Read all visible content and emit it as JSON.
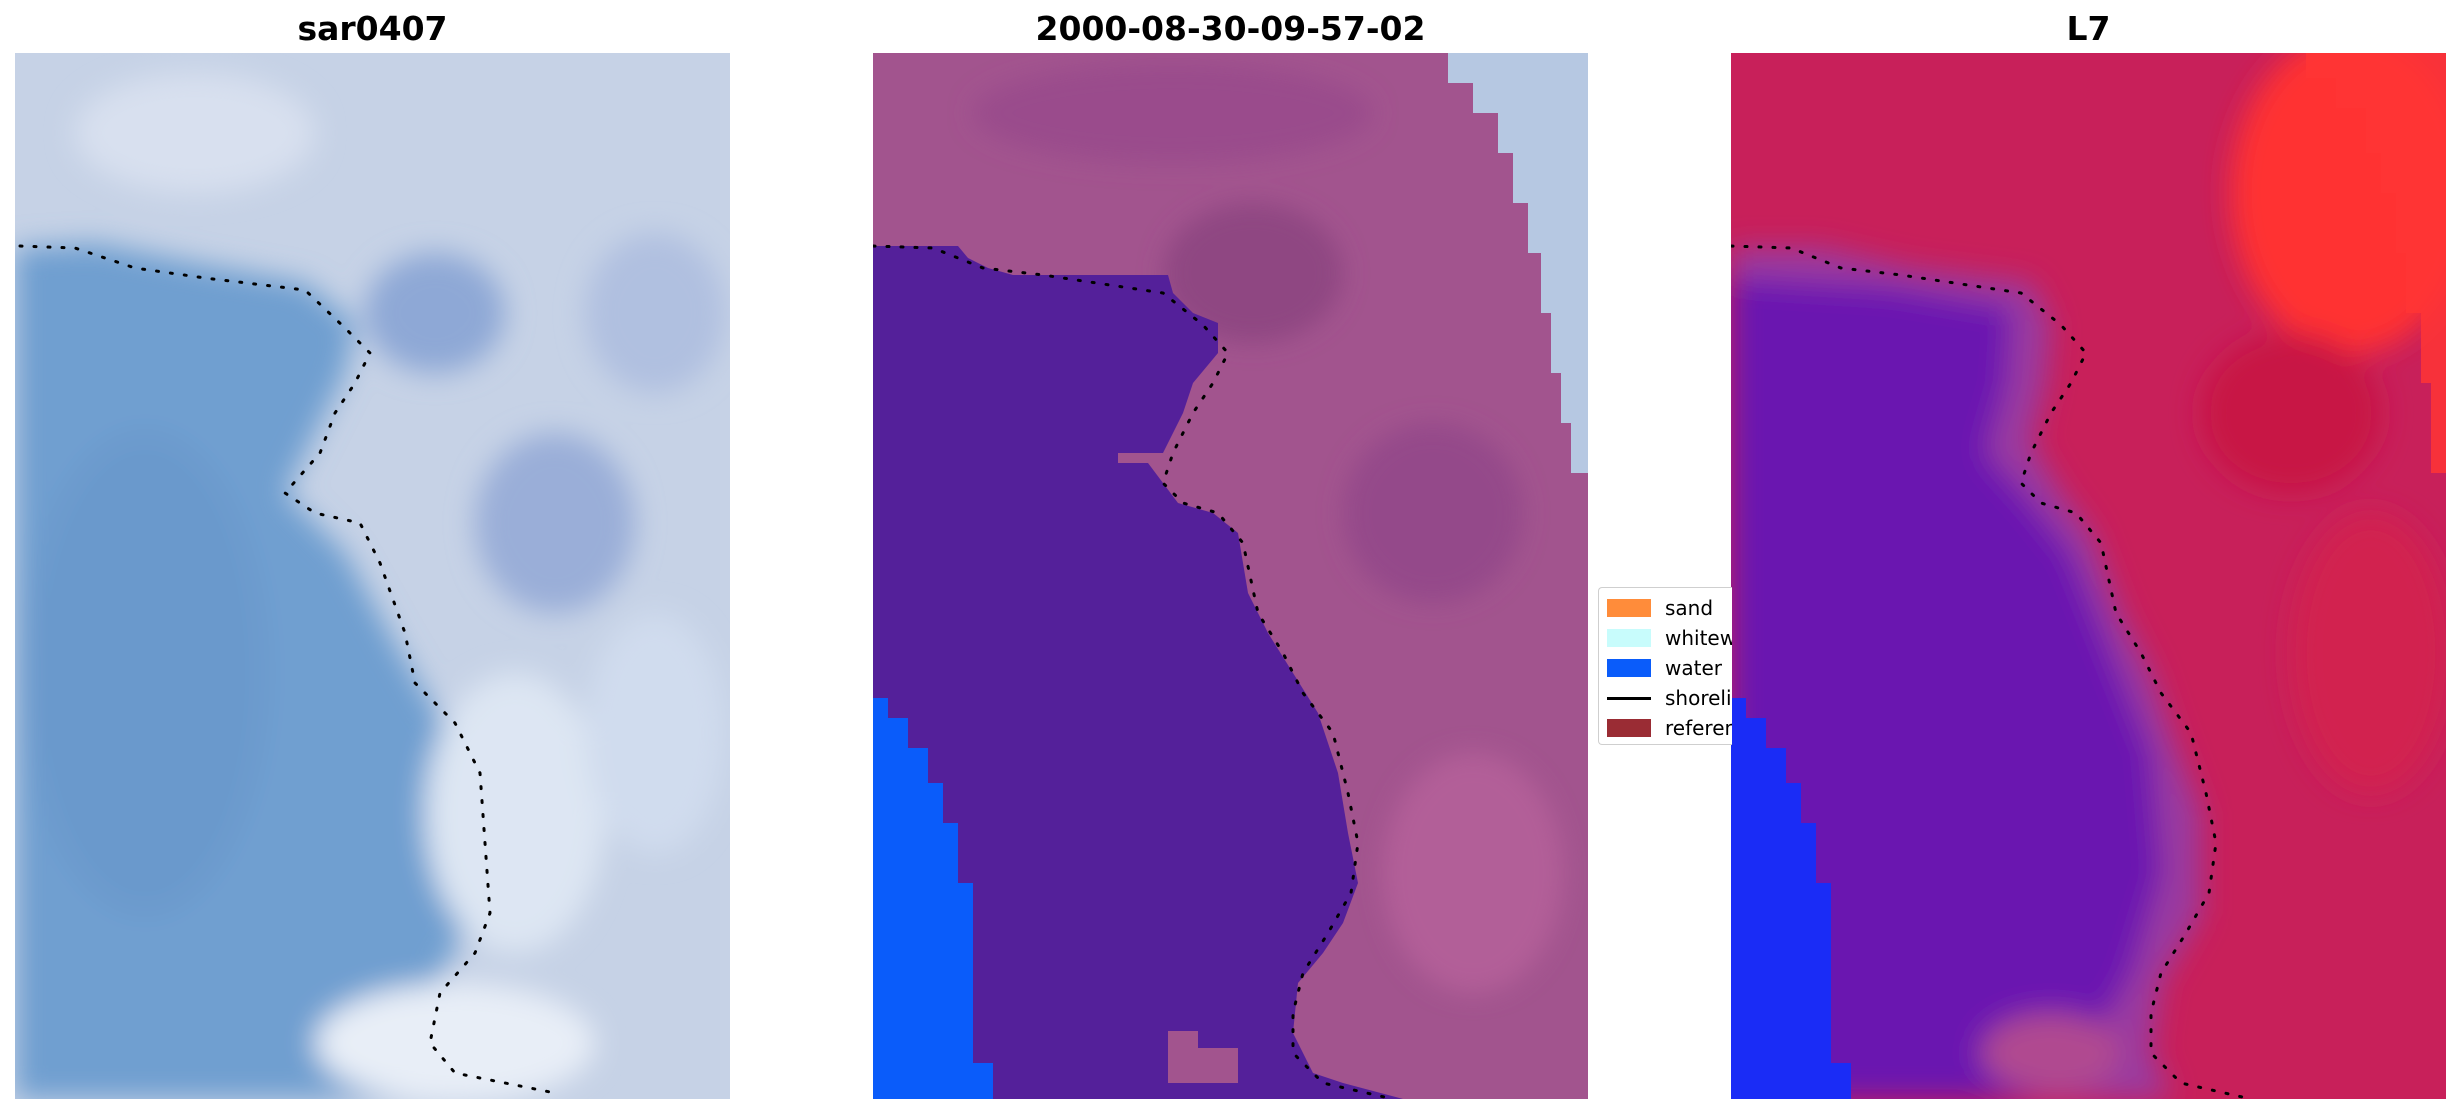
{
  "panels": [
    {
      "title": "sar0407"
    },
    {
      "title": "2000-08-30-09-57-02"
    },
    {
      "title": "L7"
    }
  ],
  "legend": {
    "items": [
      {
        "label": "sand",
        "color": "#ff8c3a",
        "kind": "patch"
      },
      {
        "label": "whitewater",
        "color": "#c8fcfc",
        "kind": "patch"
      },
      {
        "label": "water",
        "color": "#0a5cfa",
        "kind": "patch"
      },
      {
        "label": "shoreline",
        "color": "#000000",
        "kind": "line"
      },
      {
        "label": "reference",
        "color": "#9a2c34",
        "kind": "patch"
      }
    ]
  },
  "colors": {
    "rgb_water": "#6f9fd0",
    "rgb_land": "#c6d2e6",
    "class_water": "#54209a",
    "class_land": "#a2548e",
    "class_ocean": "#0a5cfa",
    "class_bright": "#b6c8e2",
    "index_land": "#c8205a",
    "index_water": "#6a14b0",
    "index_ocean": "#1a2cf6",
    "index_bright": "#ff3030"
  }
}
